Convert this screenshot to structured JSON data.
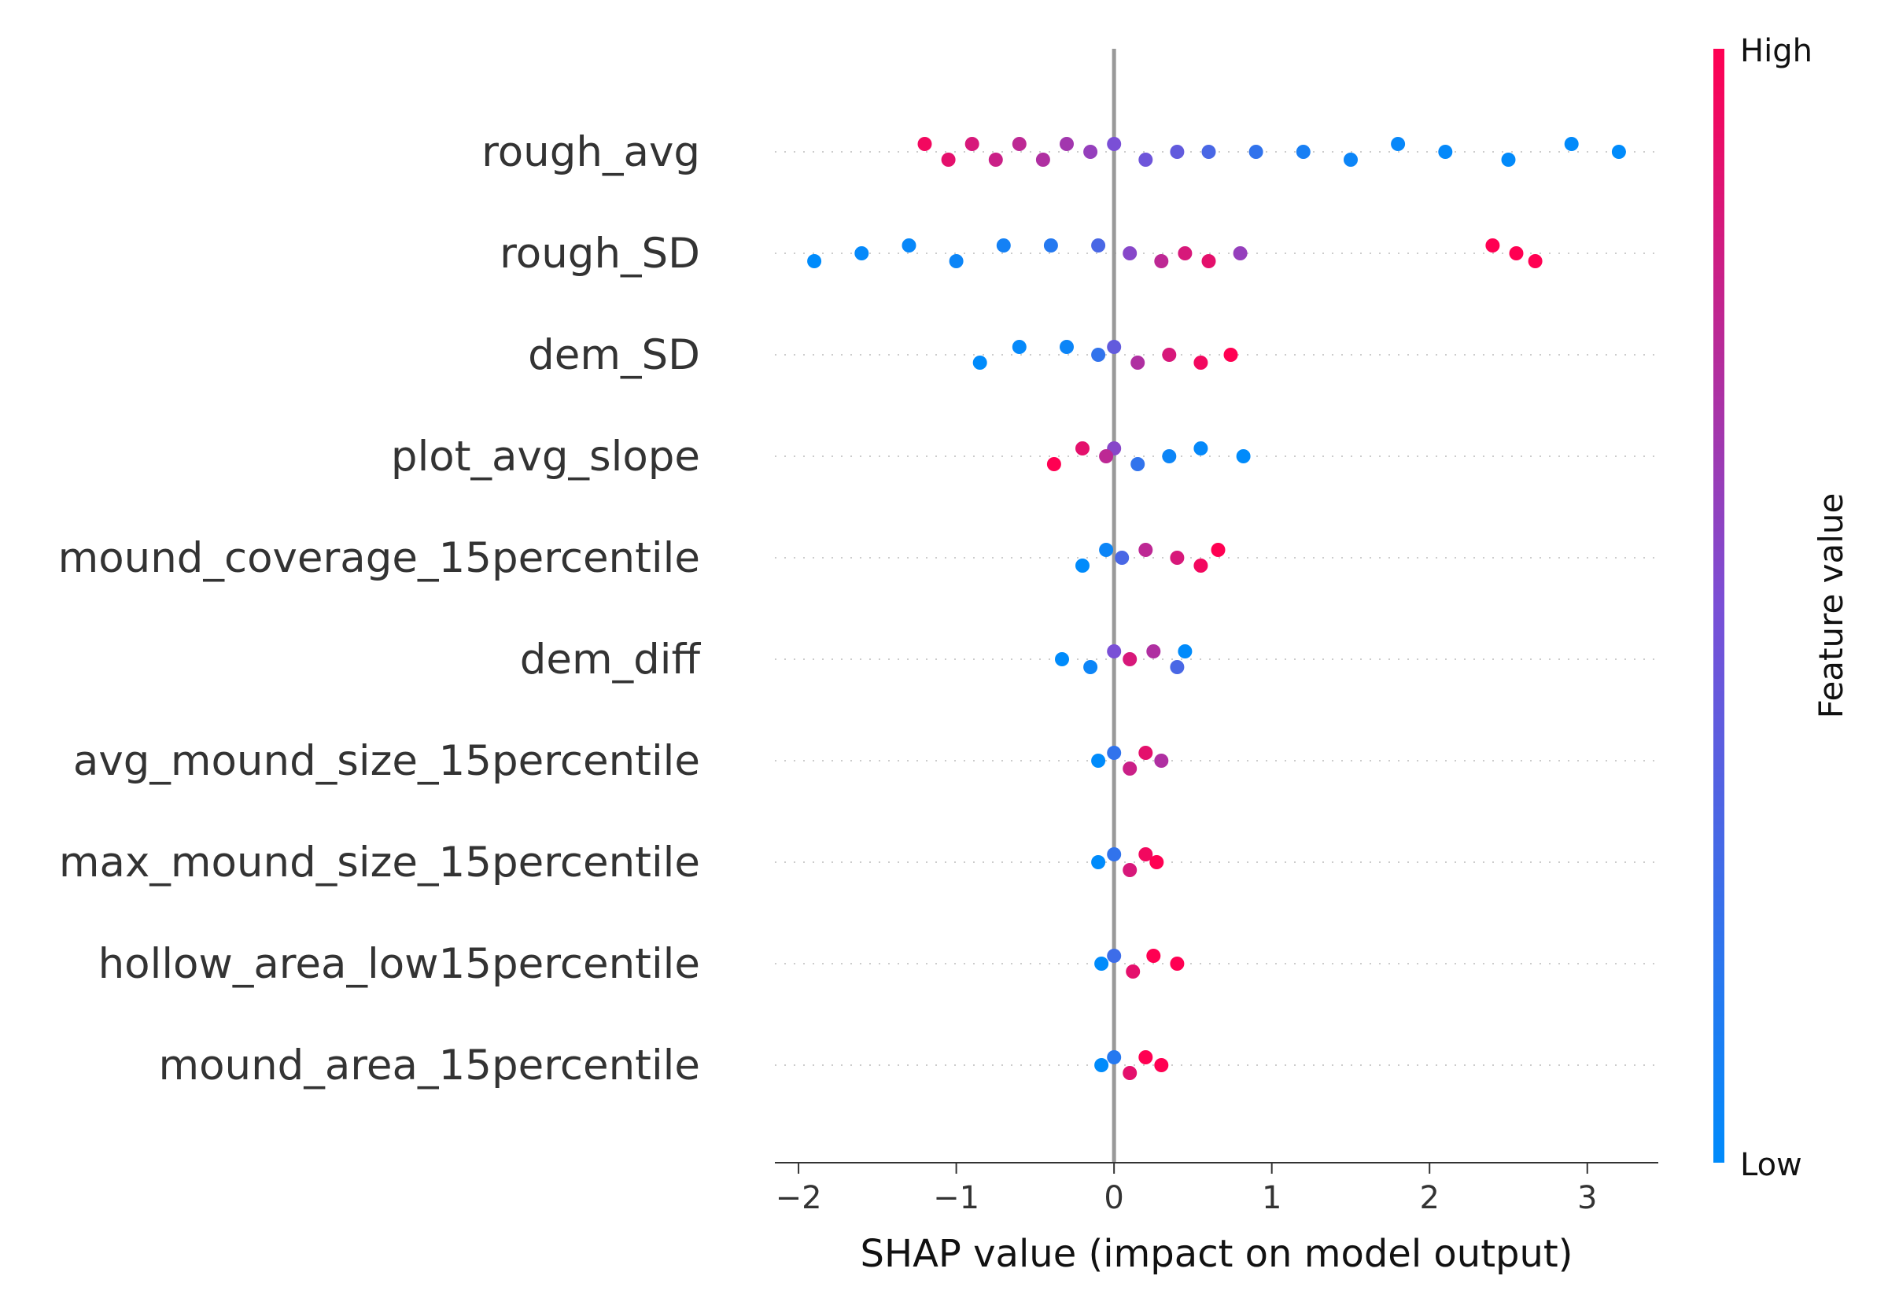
{
  "chart_data": {
    "type": "scatter",
    "subtype": "shap-beeswarm",
    "title": "",
    "xlabel": "SHAP value (impact on model output)",
    "ylabel": "",
    "xlim": [
      -2.15,
      3.45
    ],
    "xticks": [
      -2,
      -1,
      0,
      1,
      2,
      3
    ],
    "xtick_labels": [
      "−2",
      "−1",
      "0",
      "1",
      "2",
      "3"
    ],
    "grid": false,
    "colorbar": {
      "title": "Feature value",
      "high_label": "High",
      "low_label": "Low",
      "low_color": "#008bfb",
      "high_color": "#ff0052"
    },
    "features": [
      {
        "name": "rough_avg",
        "points": [
          {
            "x": -1.2,
            "c": 0.95
          },
          {
            "x": -1.05,
            "c": 0.9
          },
          {
            "x": -0.9,
            "c": 0.85
          },
          {
            "x": -0.75,
            "c": 0.8
          },
          {
            "x": -0.6,
            "c": 0.75
          },
          {
            "x": -0.45,
            "c": 0.7
          },
          {
            "x": -0.3,
            "c": 0.65
          },
          {
            "x": -0.15,
            "c": 0.6
          },
          {
            "x": 0.0,
            "c": 0.5
          },
          {
            "x": 0.2,
            "c": 0.45
          },
          {
            "x": 0.4,
            "c": 0.4
          },
          {
            "x": 0.6,
            "c": 0.3
          },
          {
            "x": 0.9,
            "c": 0.2
          },
          {
            "x": 1.2,
            "c": 0.1
          },
          {
            "x": 1.5,
            "c": 0.05
          },
          {
            "x": 1.8,
            "c": 0.03
          },
          {
            "x": 2.1,
            "c": 0.02
          },
          {
            "x": 2.5,
            "c": 0.01
          },
          {
            "x": 2.9,
            "c": 0.01
          },
          {
            "x": 3.2,
            "c": 0.0
          }
        ]
      },
      {
        "name": "rough_SD",
        "points": [
          {
            "x": -1.9,
            "c": 0.0
          },
          {
            "x": -1.6,
            "c": 0.02
          },
          {
            "x": -1.3,
            "c": 0.03
          },
          {
            "x": -1.0,
            "c": 0.05
          },
          {
            "x": -0.7,
            "c": 0.08
          },
          {
            "x": -0.4,
            "c": 0.15
          },
          {
            "x": -0.1,
            "c": 0.3
          },
          {
            "x": 0.1,
            "c": 0.55
          },
          {
            "x": 0.3,
            "c": 0.75
          },
          {
            "x": 0.45,
            "c": 0.85
          },
          {
            "x": 0.6,
            "c": 0.9
          },
          {
            "x": 0.8,
            "c": 0.6
          },
          {
            "x": 2.4,
            "c": 1.0
          },
          {
            "x": 2.55,
            "c": 1.0
          },
          {
            "x": 2.67,
            "c": 1.0
          }
        ]
      },
      {
        "name": "dem_SD",
        "points": [
          {
            "x": -0.85,
            "c": 0.0
          },
          {
            "x": -0.6,
            "c": 0.02
          },
          {
            "x": -0.3,
            "c": 0.05
          },
          {
            "x": -0.1,
            "c": 0.2
          },
          {
            "x": 0.0,
            "c": 0.4
          },
          {
            "x": 0.15,
            "c": 0.7
          },
          {
            "x": 0.35,
            "c": 0.85
          },
          {
            "x": 0.55,
            "c": 0.95
          },
          {
            "x": 0.74,
            "c": 1.0
          }
        ]
      },
      {
        "name": "plot_avg_slope",
        "points": [
          {
            "x": -0.38,
            "c": 1.0
          },
          {
            "x": -0.2,
            "c": 0.9
          },
          {
            "x": -0.05,
            "c": 0.75
          },
          {
            "x": 0.0,
            "c": 0.55
          },
          {
            "x": 0.15,
            "c": 0.2
          },
          {
            "x": 0.35,
            "c": 0.05
          },
          {
            "x": 0.55,
            "c": 0.02
          },
          {
            "x": 0.82,
            "c": 0.0
          }
        ]
      },
      {
        "name": "mound_coverage_15percentile",
        "points": [
          {
            "x": -0.2,
            "c": 0.0
          },
          {
            "x": -0.05,
            "c": 0.05
          },
          {
            "x": 0.05,
            "c": 0.3
          },
          {
            "x": 0.2,
            "c": 0.75
          },
          {
            "x": 0.4,
            "c": 0.85
          },
          {
            "x": 0.55,
            "c": 0.95
          },
          {
            "x": 0.66,
            "c": 1.0
          }
        ]
      },
      {
        "name": "dem_diff",
        "points": [
          {
            "x": -0.33,
            "c": 0.0
          },
          {
            "x": -0.15,
            "c": 0.05
          },
          {
            "x": 0.0,
            "c": 0.5
          },
          {
            "x": 0.1,
            "c": 0.85
          },
          {
            "x": 0.25,
            "c": 0.7
          },
          {
            "x": 0.4,
            "c": 0.3
          },
          {
            "x": 0.45,
            "c": 0.0
          }
        ]
      },
      {
        "name": "avg_mound_size_15percentile",
        "points": [
          {
            "x": -0.1,
            "c": 0.0
          },
          {
            "x": 0.0,
            "c": 0.2
          },
          {
            "x": 0.1,
            "c": 0.8
          },
          {
            "x": 0.2,
            "c": 0.9
          },
          {
            "x": 0.3,
            "c": 0.7
          }
        ]
      },
      {
        "name": "max_mound_size_15percentile",
        "points": [
          {
            "x": -0.1,
            "c": 0.0
          },
          {
            "x": 0.0,
            "c": 0.2
          },
          {
            "x": 0.1,
            "c": 0.85
          },
          {
            "x": 0.2,
            "c": 0.95
          },
          {
            "x": 0.27,
            "c": 1.0
          }
        ]
      },
      {
        "name": "hollow_area_low15percentile",
        "points": [
          {
            "x": -0.08,
            "c": 0.0
          },
          {
            "x": 0.0,
            "c": 0.25
          },
          {
            "x": 0.12,
            "c": 0.9
          },
          {
            "x": 0.25,
            "c": 1.0
          },
          {
            "x": 0.4,
            "c": 1.0
          }
        ]
      },
      {
        "name": "mound_area_15percentile",
        "points": [
          {
            "x": -0.08,
            "c": 0.0
          },
          {
            "x": 0.0,
            "c": 0.15
          },
          {
            "x": 0.1,
            "c": 0.9
          },
          {
            "x": 0.2,
            "c": 1.0
          },
          {
            "x": 0.3,
            "c": 1.0
          }
        ]
      }
    ]
  }
}
